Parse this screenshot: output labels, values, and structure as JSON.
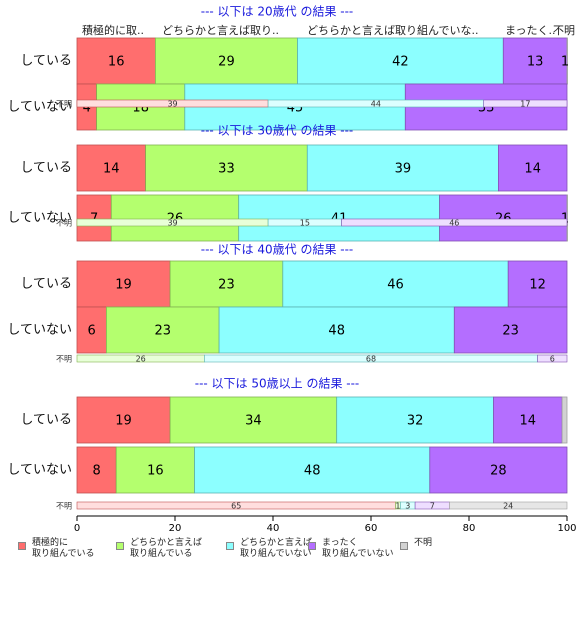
{
  "chart_data": {
    "type": "bar",
    "orientation": "horizontal",
    "stacked": true,
    "xlim": [
      0,
      100
    ],
    "xticks": [
      "0",
      "20",
      "40",
      "60",
      "80",
      "100"
    ],
    "header_labels": [
      "積極的に取..",
      "どちらかと言えば取り..",
      "どちらかと言えば取り組んでいな..",
      "まったく..",
      "不明"
    ],
    "categories_legend": [
      {
        "label": "積極的に\n取り組んでいる",
        "color": "#ff6e6e"
      },
      {
        "label": "どちらかと言えば\n取り組んでいる",
        "color": "#b4ff6e"
      },
      {
        "label": "どちらかと言えば\n取り組んでいない",
        "color": "#8cffff"
      },
      {
        "label": "まったく\n取り組んでいない",
        "color": "#b46eff"
      },
      {
        "label": "不明",
        "color": "#d2d2d2"
      }
    ],
    "panels": [
      {
        "title": "--- 以下は 20歳代 の結果 ---",
        "rows": [
          {
            "label": "している",
            "values": [
              16,
              29,
              42,
              13,
              1
            ],
            "labels": [
              "16",
              "29",
              "42",
              "13",
              "1"
            ]
          },
          {
            "label": "していない",
            "values": [
              4,
              18,
              45,
              33,
              0
            ],
            "labels": [
              "4",
              "18",
              "45",
              "33",
              ""
            ]
          }
        ],
        "unknown": {
          "label": "不明",
          "values": [
            39,
            0,
            44,
            17,
            0
          ],
          "labels": [
            "39",
            "",
            "44",
            "17",
            ""
          ]
        }
      },
      {
        "title": "--- 以下は 30歳代 の結果 ---",
        "rows": [
          {
            "label": "している",
            "values": [
              14,
              33,
              39,
              14,
              0
            ],
            "labels": [
              "14",
              "33",
              "39",
              "14",
              ""
            ]
          },
          {
            "label": "していない",
            "values": [
              7,
              26,
              41,
              26,
              1
            ],
            "labels": [
              "7",
              "26",
              "41",
              "26",
              "1"
            ]
          }
        ],
        "unknown": {
          "label": "不明",
          "values": [
            0,
            39,
            15,
            46,
            0
          ],
          "labels": [
            "",
            "39",
            "15",
            "46",
            ""
          ]
        }
      },
      {
        "title": "--- 以下は 40歳代 の結果 ---",
        "rows": [
          {
            "label": "している",
            "values": [
              19,
              23,
              46,
              12,
              0
            ],
            "labels": [
              "19",
              "23",
              "46",
              "12",
              ""
            ]
          },
          {
            "label": "していない",
            "values": [
              6,
              23,
              48,
              23,
              0
            ],
            "labels": [
              "6",
              "23",
              "48",
              "23",
              ""
            ]
          }
        ],
        "unknown": {
          "label": "不明",
          "values": [
            0,
            26,
            68,
            6,
            0
          ],
          "labels": [
            "",
            "26",
            "68",
            "6",
            ""
          ]
        }
      },
      {
        "title": "--- 以下は 50歳以上 の結果 ---",
        "rows": [
          {
            "label": "している",
            "values": [
              19,
              34,
              32,
              14,
              1
            ],
            "labels": [
              "19",
              "34",
              "32",
              "14",
              ""
            ]
          },
          {
            "label": "していない",
            "values": [
              8,
              16,
              48,
              28,
              0
            ],
            "labels": [
              "8",
              "16",
              "48",
              "28",
              ""
            ]
          }
        ],
        "unknown": {
          "label": "不明",
          "values": [
            65,
            1,
            3,
            7,
            24
          ],
          "labels": [
            "65",
            "1",
            "3",
            "7",
            "24"
          ]
        }
      }
    ]
  }
}
